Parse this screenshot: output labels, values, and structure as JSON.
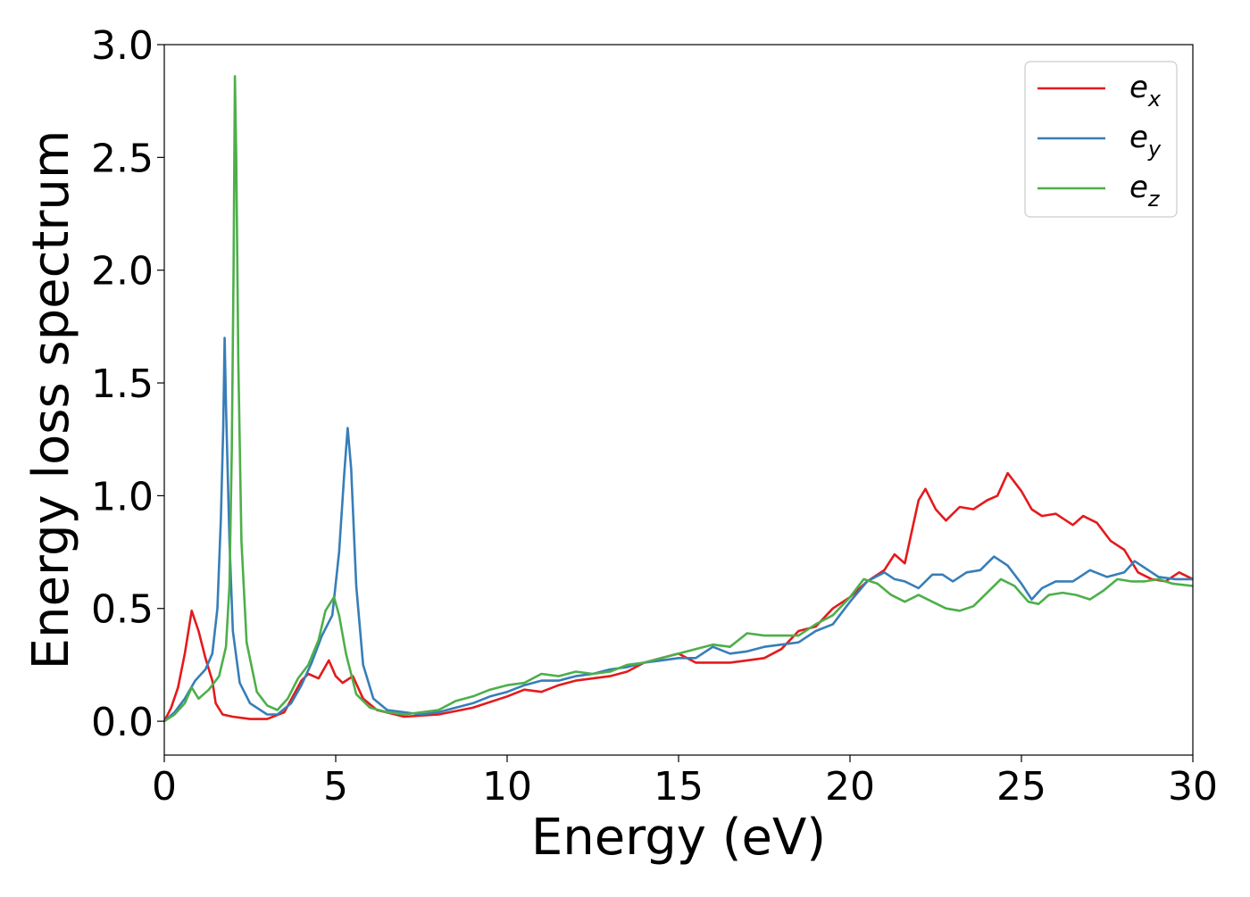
{
  "chart_data": {
    "type": "line",
    "title": "",
    "xlabel": "Energy (eV)",
    "ylabel": "Energy loss spectrum",
    "xlim": [
      0,
      30
    ],
    "ylim": [
      -0.15,
      3.0
    ],
    "xticks": [
      0,
      5,
      10,
      15,
      20,
      25,
      30
    ],
    "xtick_labels": [
      "0",
      "5",
      "10",
      "15",
      "20",
      "25",
      "30"
    ],
    "yticks": [
      0.0,
      0.5,
      1.0,
      1.5,
      2.0,
      2.5,
      3.0
    ],
    "ytick_labels": [
      "0.0",
      "0.5",
      "1.0",
      "1.5",
      "2.0",
      "2.5",
      "3.0"
    ],
    "grid": false,
    "legend_position": "top-right",
    "series": [
      {
        "name": "e_x",
        "label_main": "e",
        "label_sub": "x",
        "color": "#e41a1c",
        "points": [
          [
            0,
            0
          ],
          [
            0.2,
            0.06
          ],
          [
            0.4,
            0.15
          ],
          [
            0.6,
            0.3
          ],
          [
            0.8,
            0.49
          ],
          [
            1.0,
            0.4
          ],
          [
            1.2,
            0.28
          ],
          [
            1.4,
            0.18
          ],
          [
            1.5,
            0.08
          ],
          [
            1.7,
            0.03
          ],
          [
            2.0,
            0.02
          ],
          [
            2.5,
            0.01
          ],
          [
            3.0,
            0.01
          ],
          [
            3.5,
            0.04
          ],
          [
            4.0,
            0.18
          ],
          [
            4.2,
            0.21
          ],
          [
            4.5,
            0.19
          ],
          [
            4.8,
            0.27
          ],
          [
            5.0,
            0.2
          ],
          [
            5.2,
            0.17
          ],
          [
            5.5,
            0.2
          ],
          [
            5.8,
            0.1
          ],
          [
            6.2,
            0.05
          ],
          [
            7.0,
            0.02
          ],
          [
            8.0,
            0.03
          ],
          [
            9.0,
            0.06
          ],
          [
            10.0,
            0.11
          ],
          [
            10.5,
            0.14
          ],
          [
            11.0,
            0.13
          ],
          [
            11.5,
            0.16
          ],
          [
            12.0,
            0.18
          ],
          [
            12.5,
            0.19
          ],
          [
            13.0,
            0.2
          ],
          [
            13.5,
            0.22
          ],
          [
            14.0,
            0.26
          ],
          [
            14.5,
            0.28
          ],
          [
            15.0,
            0.3
          ],
          [
            15.5,
            0.26
          ],
          [
            16.0,
            0.26
          ],
          [
            16.5,
            0.26
          ],
          [
            17.0,
            0.27
          ],
          [
            17.5,
            0.28
          ],
          [
            18.0,
            0.32
          ],
          [
            18.5,
            0.4
          ],
          [
            19.0,
            0.42
          ],
          [
            19.5,
            0.5
          ],
          [
            20.0,
            0.55
          ],
          [
            20.5,
            0.62
          ],
          [
            21.0,
            0.67
          ],
          [
            21.3,
            0.74
          ],
          [
            21.6,
            0.7
          ],
          [
            22.0,
            0.98
          ],
          [
            22.2,
            1.03
          ],
          [
            22.5,
            0.94
          ],
          [
            22.8,
            0.89
          ],
          [
            23.2,
            0.95
          ],
          [
            23.6,
            0.94
          ],
          [
            24.0,
            0.98
          ],
          [
            24.3,
            1.0
          ],
          [
            24.6,
            1.1
          ],
          [
            25.0,
            1.02
          ],
          [
            25.3,
            0.94
          ],
          [
            25.6,
            0.91
          ],
          [
            26.0,
            0.92
          ],
          [
            26.5,
            0.87
          ],
          [
            26.8,
            0.91
          ],
          [
            27.2,
            0.88
          ],
          [
            27.6,
            0.8
          ],
          [
            28.0,
            0.76
          ],
          [
            28.4,
            0.66
          ],
          [
            28.8,
            0.63
          ],
          [
            29.2,
            0.62
          ],
          [
            29.6,
            0.66
          ],
          [
            30.0,
            0.63
          ]
        ]
      },
      {
        "name": "e_y",
        "label_main": "e",
        "label_sub": "y",
        "color": "#377eb8",
        "points": [
          [
            0,
            0
          ],
          [
            0.3,
            0.04
          ],
          [
            0.6,
            0.1
          ],
          [
            0.9,
            0.18
          ],
          [
            1.2,
            0.23
          ],
          [
            1.4,
            0.3
          ],
          [
            1.55,
            0.5
          ],
          [
            1.65,
            0.9
          ],
          [
            1.72,
            1.3
          ],
          [
            1.76,
            1.7
          ],
          [
            1.8,
            1.4
          ],
          [
            1.9,
            0.8
          ],
          [
            2.0,
            0.4
          ],
          [
            2.2,
            0.17
          ],
          [
            2.5,
            0.08
          ],
          [
            3.0,
            0.03
          ],
          [
            3.3,
            0.03
          ],
          [
            3.7,
            0.08
          ],
          [
            4.0,
            0.16
          ],
          [
            4.3,
            0.26
          ],
          [
            4.6,
            0.38
          ],
          [
            4.9,
            0.47
          ],
          [
            5.1,
            0.75
          ],
          [
            5.25,
            1.1
          ],
          [
            5.35,
            1.3
          ],
          [
            5.45,
            1.12
          ],
          [
            5.6,
            0.6
          ],
          [
            5.8,
            0.25
          ],
          [
            6.1,
            0.1
          ],
          [
            6.5,
            0.05
          ],
          [
            7.0,
            0.04
          ],
          [
            7.5,
            0.03
          ],
          [
            8.0,
            0.04
          ],
          [
            8.5,
            0.06
          ],
          [
            9.0,
            0.08
          ],
          [
            9.5,
            0.11
          ],
          [
            10.0,
            0.13
          ],
          [
            10.5,
            0.16
          ],
          [
            11.0,
            0.18
          ],
          [
            11.5,
            0.18
          ],
          [
            12.0,
            0.2
          ],
          [
            12.5,
            0.21
          ],
          [
            13.0,
            0.23
          ],
          [
            13.5,
            0.24
          ],
          [
            14.0,
            0.26
          ],
          [
            14.5,
            0.27
          ],
          [
            15.0,
            0.28
          ],
          [
            15.5,
            0.28
          ],
          [
            16.0,
            0.33
          ],
          [
            16.5,
            0.3
          ],
          [
            17.0,
            0.31
          ],
          [
            17.5,
            0.33
          ],
          [
            18.0,
            0.34
          ],
          [
            18.5,
            0.35
          ],
          [
            19.0,
            0.4
          ],
          [
            19.5,
            0.43
          ],
          [
            20.0,
            0.53
          ],
          [
            20.5,
            0.62
          ],
          [
            21.0,
            0.66
          ],
          [
            21.3,
            0.63
          ],
          [
            21.6,
            0.62
          ],
          [
            22.0,
            0.59
          ],
          [
            22.4,
            0.65
          ],
          [
            22.7,
            0.65
          ],
          [
            23.0,
            0.62
          ],
          [
            23.4,
            0.66
          ],
          [
            23.8,
            0.67
          ],
          [
            24.2,
            0.73
          ],
          [
            24.6,
            0.69
          ],
          [
            25.0,
            0.61
          ],
          [
            25.3,
            0.54
          ],
          [
            25.6,
            0.59
          ],
          [
            26.0,
            0.62
          ],
          [
            26.5,
            0.62
          ],
          [
            27.0,
            0.67
          ],
          [
            27.5,
            0.64
          ],
          [
            28.0,
            0.66
          ],
          [
            28.3,
            0.71
          ],
          [
            28.7,
            0.67
          ],
          [
            29.0,
            0.64
          ],
          [
            29.5,
            0.63
          ],
          [
            30.0,
            0.63
          ]
        ]
      },
      {
        "name": "e_z",
        "label_main": "e",
        "label_sub": "z",
        "color": "#4daf4a",
        "points": [
          [
            0,
            0
          ],
          [
            0.3,
            0.03
          ],
          [
            0.6,
            0.08
          ],
          [
            0.8,
            0.15
          ],
          [
            1.0,
            0.1
          ],
          [
            1.3,
            0.14
          ],
          [
            1.6,
            0.2
          ],
          [
            1.8,
            0.33
          ],
          [
            1.9,
            0.6
          ],
          [
            1.97,
            1.2
          ],
          [
            2.02,
            2.0
          ],
          [
            2.06,
            2.86
          ],
          [
            2.1,
            2.5
          ],
          [
            2.16,
            1.6
          ],
          [
            2.25,
            0.8
          ],
          [
            2.4,
            0.35
          ],
          [
            2.7,
            0.13
          ],
          [
            3.0,
            0.07
          ],
          [
            3.3,
            0.05
          ],
          [
            3.6,
            0.1
          ],
          [
            3.9,
            0.19
          ],
          [
            4.2,
            0.25
          ],
          [
            4.5,
            0.36
          ],
          [
            4.7,
            0.49
          ],
          [
            4.95,
            0.55
          ],
          [
            5.1,
            0.47
          ],
          [
            5.3,
            0.3
          ],
          [
            5.6,
            0.12
          ],
          [
            6.0,
            0.06
          ],
          [
            6.5,
            0.04
          ],
          [
            7.0,
            0.03
          ],
          [
            7.5,
            0.04
          ],
          [
            8.0,
            0.05
          ],
          [
            8.5,
            0.09
          ],
          [
            9.0,
            0.11
          ],
          [
            9.5,
            0.14
          ],
          [
            10.0,
            0.16
          ],
          [
            10.5,
            0.17
          ],
          [
            11.0,
            0.21
          ],
          [
            11.5,
            0.2
          ],
          [
            12.0,
            0.22
          ],
          [
            12.5,
            0.21
          ],
          [
            13.0,
            0.22
          ],
          [
            13.5,
            0.25
          ],
          [
            14.0,
            0.26
          ],
          [
            14.5,
            0.28
          ],
          [
            15.0,
            0.3
          ],
          [
            15.5,
            0.32
          ],
          [
            16.0,
            0.34
          ],
          [
            16.5,
            0.33
          ],
          [
            17.0,
            0.39
          ],
          [
            17.5,
            0.38
          ],
          [
            18.0,
            0.38
          ],
          [
            18.5,
            0.38
          ],
          [
            19.0,
            0.43
          ],
          [
            19.5,
            0.47
          ],
          [
            20.0,
            0.55
          ],
          [
            20.4,
            0.63
          ],
          [
            20.8,
            0.61
          ],
          [
            21.2,
            0.56
          ],
          [
            21.6,
            0.53
          ],
          [
            22.0,
            0.56
          ],
          [
            22.4,
            0.53
          ],
          [
            22.8,
            0.5
          ],
          [
            23.2,
            0.49
          ],
          [
            23.6,
            0.51
          ],
          [
            24.0,
            0.57
          ],
          [
            24.4,
            0.63
          ],
          [
            24.8,
            0.6
          ],
          [
            25.2,
            0.53
          ],
          [
            25.5,
            0.52
          ],
          [
            25.8,
            0.56
          ],
          [
            26.2,
            0.57
          ],
          [
            26.6,
            0.56
          ],
          [
            27.0,
            0.54
          ],
          [
            27.4,
            0.58
          ],
          [
            27.8,
            0.63
          ],
          [
            28.2,
            0.62
          ],
          [
            28.6,
            0.62
          ],
          [
            29.0,
            0.63
          ],
          [
            29.4,
            0.61
          ],
          [
            30.0,
            0.6
          ]
        ]
      }
    ]
  }
}
